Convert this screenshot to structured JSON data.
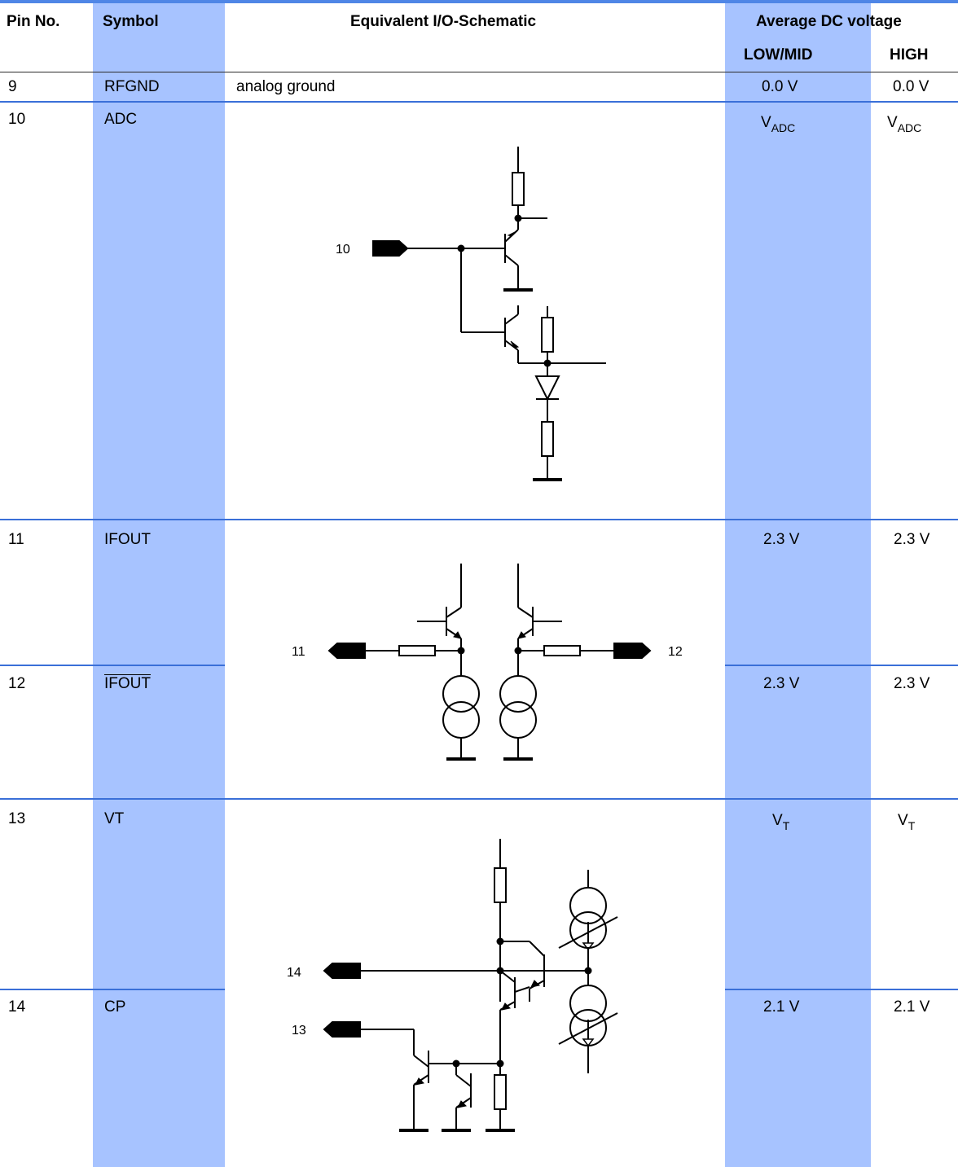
{
  "header": {
    "pin_no": "Pin No.",
    "symbol": "Symbol",
    "schematic": "Equivalent I/O-Schematic",
    "avg_dc": "Average DC voltage",
    "low_mid": "LOW/MID",
    "high": "HIGH"
  },
  "rows": [
    {
      "pin": "9",
      "symbol": "RFGND",
      "schematic_text": "analog ground",
      "low_mid": "0.0 V",
      "high": "0.0 V"
    },
    {
      "pin": "10",
      "symbol": "ADC",
      "low_mid_base": "V",
      "low_mid_sub": "ADC",
      "high_base": "V",
      "high_sub": "ADC"
    },
    {
      "pin": "11",
      "symbol": "IFOUT",
      "low_mid": "2.3 V",
      "high": "2.3 V"
    },
    {
      "pin": "12",
      "symbol": "IFOUT",
      "low_mid": "2.3 V",
      "high": "2.3 V"
    },
    {
      "pin": "13",
      "symbol": "VT",
      "low_mid_base": "V",
      "low_mid_sub": "T",
      "high_base": "V",
      "high_sub": "T"
    },
    {
      "pin": "14",
      "symbol": "CP",
      "low_mid": "2.1 V",
      "high": "2.1 V"
    }
  ],
  "schematic_labels": {
    "adc_pin": "10",
    "if_left": "11",
    "if_right": "12",
    "vt_cp_top": "14",
    "vt_cp_bottom": "13"
  }
}
